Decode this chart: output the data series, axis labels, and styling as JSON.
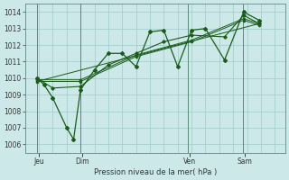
{
  "bg_color": "#cce8e8",
  "grid_color": "#a8cece",
  "line_color": "#1a5c1a",
  "xlabel": "Pression niveau de la mer( hPa )",
  "ylim": [
    1005.5,
    1014.5
  ],
  "yticks": [
    1006,
    1007,
    1008,
    1009,
    1010,
    1011,
    1012,
    1013,
    1014
  ],
  "day_labels": [
    "Jeu",
    "Dim",
    "Ven",
    "Sam"
  ],
  "day_positions": [
    16,
    66,
    190,
    253
  ],
  "vline_positions": [
    14,
    64,
    188,
    251
  ],
  "xmin": 0,
  "xmax": 300,
  "series1_x": [
    14,
    22,
    32,
    48,
    56,
    64,
    80,
    96,
    112,
    128,
    144,
    160,
    176,
    192,
    208,
    230,
    252,
    270
  ],
  "series1_y": [
    1010.0,
    1009.6,
    1008.8,
    1007.0,
    1006.3,
    1009.3,
    1010.5,
    1011.5,
    1011.5,
    1010.7,
    1012.8,
    1012.9,
    1010.7,
    1012.9,
    1013.0,
    1011.1,
    1014.0,
    1013.5
  ],
  "series2_x": [
    14,
    32,
    64,
    96,
    128,
    160,
    192,
    230,
    252,
    270
  ],
  "series2_y": [
    1010.0,
    1009.4,
    1009.5,
    1010.8,
    1011.5,
    1012.2,
    1012.6,
    1012.5,
    1013.8,
    1013.3
  ],
  "series3_x": [
    14,
    64,
    128,
    192,
    252,
    270
  ],
  "series3_y": [
    1009.8,
    1009.8,
    1011.3,
    1012.2,
    1013.5,
    1013.2
  ],
  "series4_x": [
    14,
    64,
    128,
    192,
    252,
    270
  ],
  "series4_y": [
    1009.9,
    1009.9,
    1011.4,
    1012.3,
    1013.6,
    1013.3
  ],
  "trend_x": [
    14,
    270
  ],
  "trend_y": [
    1009.8,
    1013.3
  ],
  "marker_size": 2.0,
  "line_width": 0.9
}
